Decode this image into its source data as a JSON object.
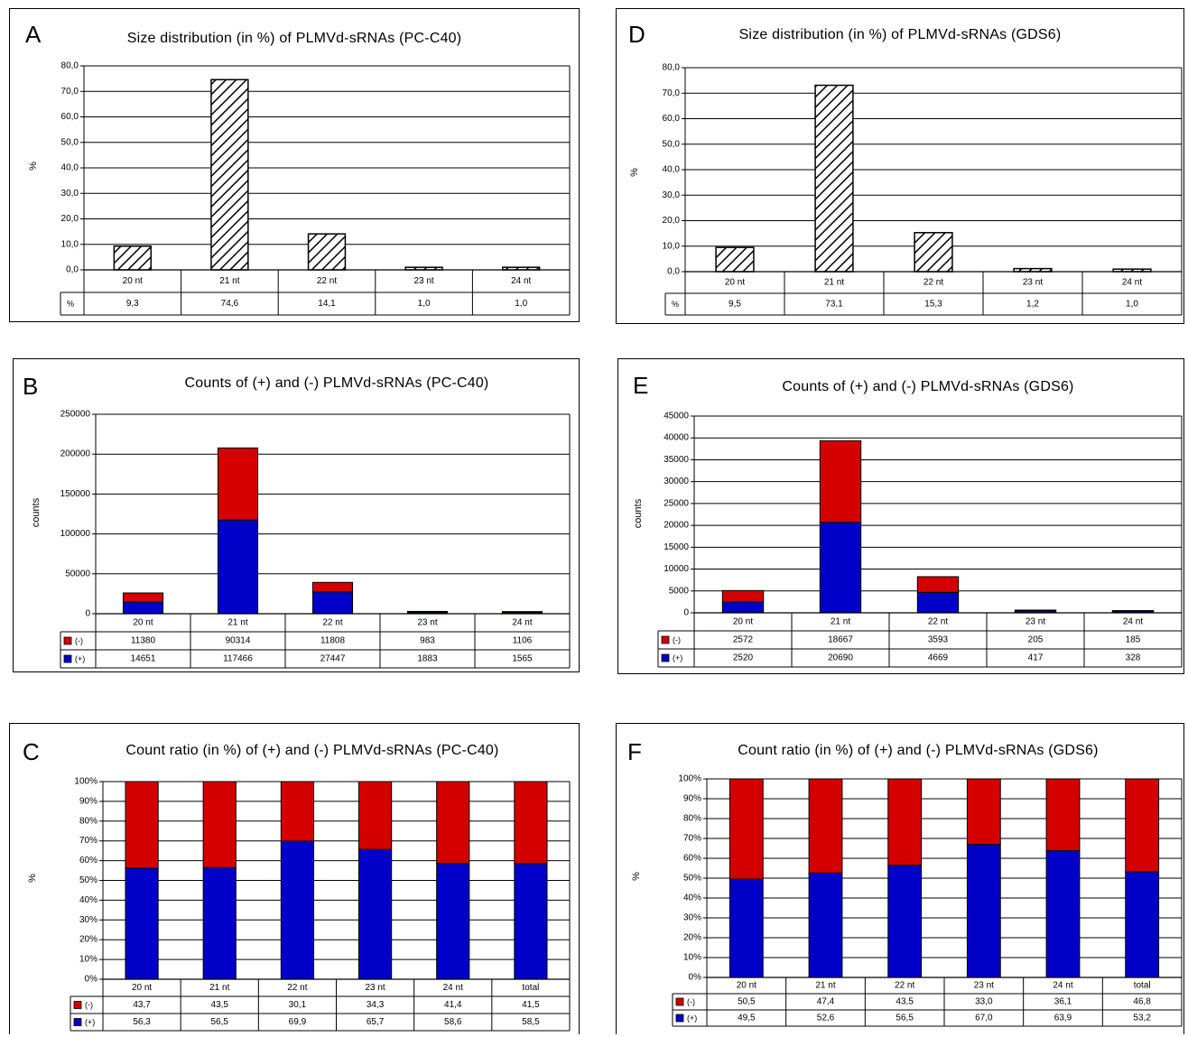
{
  "chart_data": [
    {
      "panel": "A",
      "type": "bar",
      "title": "Size distribution (in %)  of  PLMVd-sRNAs (PC-C40)",
      "ylabel": "%",
      "ylim": [
        0,
        80
      ],
      "yticks": [
        "0,0",
        "10,0",
        "20,0",
        "30,0",
        "40,0",
        "50,0",
        "60,0",
        "70,0",
        "80,0"
      ],
      "categories": [
        "20 nt",
        "21 nt",
        "22 nt",
        "23 nt",
        "24 nt"
      ],
      "series": [
        {
          "name": "%",
          "values": [
            9.3,
            74.6,
            14.1,
            1.0,
            1.0
          ],
          "labels": [
            "9,3",
            "74,6",
            "14,1",
            "1,0",
            "1,0"
          ]
        }
      ],
      "grid": true
    },
    {
      "panel": "D",
      "type": "bar",
      "title": "Size distribution (in %)  of  PLMVd-sRNAs (GDS6)",
      "ylabel": "%",
      "ylim": [
        0,
        80
      ],
      "yticks": [
        "0,0",
        "10,0",
        "20,0",
        "30,0",
        "40,0",
        "50,0",
        "60,0",
        "70,0",
        "80,0"
      ],
      "categories": [
        "20 nt",
        "21 nt",
        "22 nt",
        "23 nt",
        "24 nt"
      ],
      "series": [
        {
          "name": "%",
          "values": [
            9.5,
            73.1,
            15.3,
            1.2,
            1.0
          ],
          "labels": [
            "9,5",
            "73,1",
            "15,3",
            "1,2",
            "1,0"
          ]
        }
      ],
      "grid": true
    },
    {
      "panel": "B",
      "type": "bar",
      "stacked": true,
      "title": "Counts of  (+) and  (-)  PLMVd-sRNAs (PC-C40)",
      "ylabel": "counts",
      "ylim": [
        0,
        250000
      ],
      "yticks": [
        "0",
        "50000",
        "100000",
        "150000",
        "200000",
        "250000"
      ],
      "categories": [
        "20 nt",
        "21 nt",
        "22 nt",
        "23 nt",
        "24 nt"
      ],
      "series": [
        {
          "name": "(-)",
          "color": "#d40000",
          "values": [
            11380,
            90314,
            11808,
            983,
            1106
          ],
          "labels": [
            "11380",
            "90314",
            "11808",
            "983",
            "1106"
          ]
        },
        {
          "name": "(+)",
          "color": "#0000c8",
          "values": [
            14651,
            117466,
            27447,
            1883,
            1565
          ],
          "labels": [
            "14651",
            "117466",
            "27447",
            "1883",
            "1565"
          ]
        }
      ],
      "grid": true
    },
    {
      "panel": "E",
      "type": "bar",
      "stacked": true,
      "title": "Counts of  (+) and  (-)  PLMVd-sRNAs (GDS6)",
      "ylabel": "counts",
      "ylim": [
        0,
        45000
      ],
      "yticks": [
        "0",
        "5000",
        "10000",
        "15000",
        "20000",
        "25000",
        "30000",
        "35000",
        "40000",
        "45000"
      ],
      "categories": [
        "20 nt",
        "21 nt",
        "22 nt",
        "23 nt",
        "24 nt"
      ],
      "series": [
        {
          "name": "(-)",
          "color": "#d40000",
          "values": [
            2572,
            18667,
            3593,
            205,
            185
          ],
          "labels": [
            "2572",
            "18667",
            "3593",
            "205",
            "185"
          ]
        },
        {
          "name": "(+)",
          "color": "#0000c8",
          "values": [
            2520,
            20690,
            4669,
            417,
            328
          ],
          "labels": [
            "2520",
            "20690",
            "4669",
            "417",
            "328"
          ]
        }
      ],
      "grid": true
    },
    {
      "panel": "C",
      "type": "bar",
      "stacked": true,
      "title": "Count  ratio (in %) of  (+) and  (-)  PLMVd-sRNAs (PC-C40)",
      "ylabel": "%",
      "ylim": [
        0,
        100
      ],
      "yticks": [
        "0%",
        "10%",
        "20%",
        "30%",
        "40%",
        "50%",
        "60%",
        "70%",
        "80%",
        "90%",
        "100%"
      ],
      "categories": [
        "20 nt",
        "21 nt",
        "22 nt",
        "23 nt",
        "24 nt",
        "total"
      ],
      "series": [
        {
          "name": "(-)",
          "color": "#d40000",
          "values": [
            43.7,
            43.5,
            30.1,
            34.3,
            41.4,
            41.5
          ],
          "labels": [
            "43,7",
            "43,5",
            "30,1",
            "34,3",
            "41,4",
            "41,5"
          ]
        },
        {
          "name": "(+)",
          "color": "#0000c8",
          "values": [
            56.3,
            56.5,
            69.9,
            65.7,
            58.6,
            58.5
          ],
          "labels": [
            "56,3",
            "56,5",
            "69,9",
            "65,7",
            "58,6",
            "58,5"
          ]
        }
      ],
      "grid": true
    },
    {
      "panel": "F",
      "type": "bar",
      "stacked": true,
      "title": "Count ratio (in %) of  (+) and  (-)  PLMVd-sRNAs (GDS6)",
      "ylabel": "%",
      "ylim": [
        0,
        100
      ],
      "yticks": [
        "0%",
        "10%",
        "20%",
        "30%",
        "40%",
        "50%",
        "60%",
        "70%",
        "80%",
        "90%",
        "100%"
      ],
      "categories": [
        "20 nt",
        "21 nt",
        "22 nt",
        "23 nt",
        "24 nt",
        "total"
      ],
      "series": [
        {
          "name": "(-)",
          "color": "#d40000",
          "values": [
            50.5,
            47.4,
            43.5,
            33.0,
            36.1,
            46.8
          ],
          "labels": [
            "50,5",
            "47,4",
            "43,5",
            "33,0",
            "36,1",
            "46,8"
          ]
        },
        {
          "name": "(+)",
          "color": "#0000c8",
          "values": [
            49.5,
            52.6,
            56.5,
            67.0,
            63.9,
            53.2
          ],
          "labels": [
            "49,5",
            "52,6",
            "56,5",
            "67,0",
            "63,9",
            "53,2"
          ]
        }
      ],
      "grid": true
    }
  ]
}
